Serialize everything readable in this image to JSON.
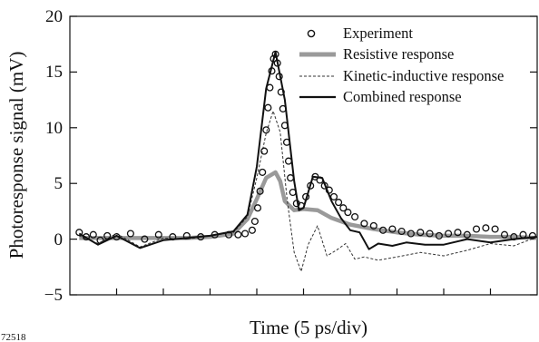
{
  "figure_id": "72518",
  "chart_data": {
    "type": "line",
    "title": "",
    "xlabel": "Time (5 ps/div)",
    "ylabel": "Photoresponse signal (mV)",
    "ylim": [
      -5,
      20
    ],
    "xlim": [
      0,
      10
    ],
    "y_ticks": [
      -5,
      0,
      5,
      10,
      15,
      20
    ],
    "y_tick_labels": [
      "−5",
      "0",
      "5",
      "10",
      "15",
      "20"
    ],
    "x_ticks": [
      1,
      2,
      3,
      4,
      5,
      6,
      7,
      8,
      9
    ],
    "x_tick_labels_shown": false,
    "grid": false,
    "legend_position": "top-right",
    "series": [
      {
        "name": "Experiment",
        "style": "circle-markers",
        "color": "#111111",
        "x": [
          3.9,
          3.96,
          4.02,
          4.07,
          4.12,
          4.16,
          4.2,
          4.24,
          4.28,
          4.32,
          4.36,
          4.4,
          4.44,
          4.48,
          4.52,
          4.56,
          4.6,
          4.64,
          4.68,
          4.72,
          4.77
        ],
        "y": [
          0.8,
          1.6,
          2.8,
          4.3,
          6.0,
          7.9,
          9.8,
          11.8,
          13.6,
          15.1,
          16.2,
          16.6,
          15.8,
          14.6,
          13.2,
          11.7,
          10.2,
          8.7,
          7.0,
          5.5,
          4.2
        ]
      },
      {
        "name": "Resistive response",
        "style": "thick-gray",
        "color": "#9a9a9a",
        "x": [
          0.2,
          0.6,
          1.0,
          1.5,
          2.0,
          2.5,
          3.0,
          3.5,
          3.8,
          4.0,
          4.2,
          4.4,
          4.5,
          4.6,
          4.8,
          5.0,
          5.3,
          5.6,
          6.0,
          6.5,
          7.0,
          7.5,
          8.0,
          8.5,
          9.0,
          9.5,
          10.0
        ],
        "y": [
          0.1,
          0.1,
          0.1,
          0.1,
          0.1,
          0.1,
          0.2,
          0.5,
          1.8,
          3.6,
          5.5,
          6.0,
          5.2,
          3.4,
          2.6,
          2.7,
          2.6,
          1.9,
          1.3,
          0.9,
          0.6,
          0.4,
          0.3,
          0.3,
          0.2,
          0.2,
          0.1
        ]
      },
      {
        "name": "Kinetic-inductive response",
        "style": "dashed",
        "color": "#333333",
        "x": [
          0.2,
          0.6,
          1.0,
          1.5,
          2.0,
          2.5,
          3.0,
          3.5,
          3.8,
          4.0,
          4.2,
          4.35,
          4.5,
          4.65,
          4.8,
          4.95,
          5.1,
          5.3,
          5.5,
          5.7,
          5.9,
          6.1,
          6.3,
          6.6,
          7.0,
          7.5,
          8.0,
          8.5,
          9.0,
          9.5,
          10.0
        ],
        "y": [
          0.3,
          -0.4,
          0.5,
          -0.7,
          0.1,
          0.0,
          0.3,
          0.6,
          2.0,
          5.5,
          9.5,
          11.5,
          9.6,
          3.5,
          -1.2,
          -2.9,
          -0.5,
          1.2,
          -1.5,
          -1.0,
          -0.4,
          -1.8,
          -1.6,
          -1.9,
          -1.6,
          -1.2,
          -1.5,
          -1.0,
          -0.4,
          -0.6,
          0.2
        ]
      },
      {
        "name": "Combined response",
        "style": "solid",
        "color": "#111111",
        "x": [
          0.2,
          0.6,
          1.0,
          1.5,
          2.0,
          2.5,
          3.0,
          3.5,
          3.8,
          4.0,
          4.2,
          4.4,
          4.6,
          4.8,
          4.9,
          5.0,
          5.2,
          5.4,
          5.6,
          5.8,
          6.0,
          6.2,
          6.4,
          6.6,
          6.9,
          7.2,
          7.6,
          8.0,
          8.5,
          9.0,
          9.5,
          10.0
        ],
        "y": [
          0.5,
          -0.5,
          0.3,
          -0.8,
          -0.1,
          0.1,
          0.3,
          0.7,
          2.2,
          6.5,
          13.5,
          16.8,
          12.5,
          5.2,
          2.6,
          2.8,
          5.6,
          5.5,
          3.4,
          1.9,
          0.8,
          0.6,
          -0.9,
          -0.4,
          -0.6,
          -0.3,
          -0.5,
          -0.5,
          0.0,
          -0.3,
          0.0,
          0.2
        ]
      }
    ],
    "experiment_extra": {
      "description_values_only": true,
      "x": [
        0.2,
        0.35,
        0.5,
        0.65,
        0.8,
        1.0,
        1.3,
        1.6,
        1.9,
        2.2,
        2.5,
        2.8,
        3.1,
        3.4,
        3.6,
        3.75,
        4.85,
        4.95,
        5.05,
        5.15,
        5.25,
        5.35,
        5.45,
        5.55,
        5.65,
        5.75,
        5.85,
        5.95,
        6.1,
        6.3,
        6.5,
        6.7,
        6.9,
        7.1,
        7.3,
        7.5,
        7.7,
        7.9,
        8.1,
        8.3,
        8.5,
        8.7,
        8.9,
        9.1,
        9.3,
        9.5,
        9.7,
        9.9
      ],
      "y": [
        0.6,
        0.2,
        0.4,
        -0.1,
        0.3,
        0.2,
        0.5,
        0.0,
        0.4,
        0.2,
        0.3,
        0.2,
        0.4,
        0.4,
        0.4,
        0.5,
        3.2,
        3.0,
        3.8,
        4.8,
        5.6,
        5.3,
        4.8,
        4.4,
        3.8,
        3.3,
        2.8,
        2.4,
        2.0,
        1.4,
        1.2,
        0.8,
        0.9,
        0.7,
        0.5,
        0.6,
        0.5,
        0.3,
        0.5,
        0.6,
        0.4,
        0.9,
        1.0,
        0.9,
        0.4,
        0.2,
        0.4,
        0.3
      ]
    }
  }
}
